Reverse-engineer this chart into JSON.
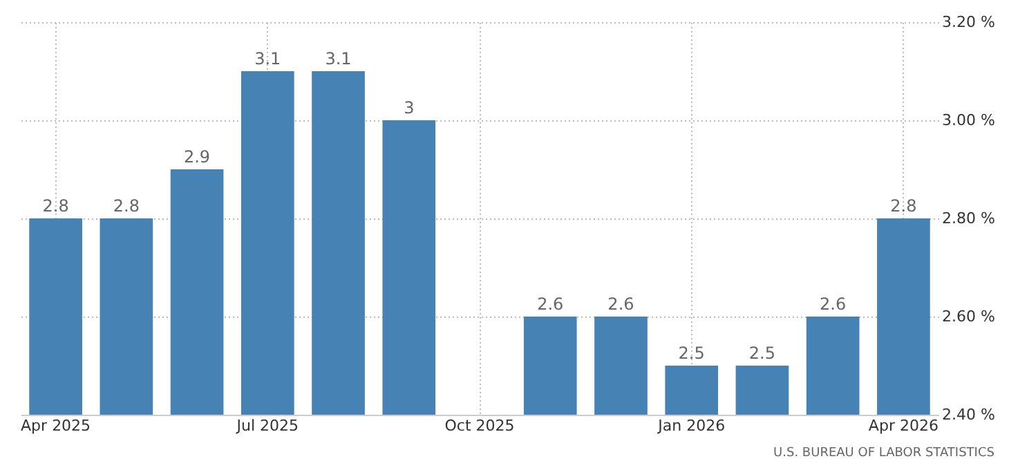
{
  "chart_data": {
    "type": "bar",
    "categories": [
      "Apr 2025",
      null,
      null,
      "Jul 2025",
      null,
      null,
      "Oct 2025",
      null,
      null,
      "Jan 2026",
      null,
      null,
      "Apr 2026"
    ],
    "values": [
      2.8,
      2.8,
      2.9,
      3.1,
      3.1,
      3,
      null,
      2.6,
      2.6,
      2.5,
      2.5,
      2.6,
      2.8
    ],
    "color": "#4682b4",
    "ylim": [
      2.4,
      3.2
    ],
    "yticks": [
      {
        "value": 2.4,
        "label": "2.40 %"
      },
      {
        "value": 2.6,
        "label": "2.60 %"
      },
      {
        "value": 2.8,
        "label": "2.80 %"
      },
      {
        "value": 3.0,
        "label": "3.00 %"
      },
      {
        "value": 3.2,
        "label": "3.20 %"
      }
    ],
    "grid": true,
    "data_labels": true,
    "annotations": [
      "U.S. BUREAU OF LABOR STATISTICS"
    ]
  }
}
